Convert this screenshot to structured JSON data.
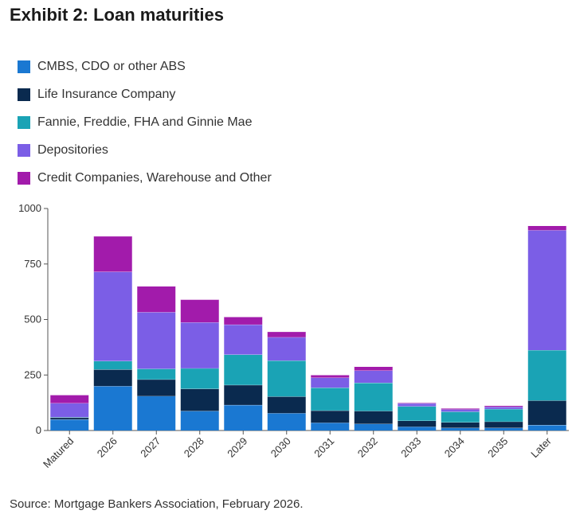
{
  "title": "Exhibit 2: Loan maturities",
  "source": "Source: Mortgage Bankers Association, February 2026.",
  "chart_data": {
    "type": "bar",
    "stacked": true,
    "categories": [
      "Matured",
      "2026",
      "2027",
      "2028",
      "2029",
      "2030",
      "2031",
      "2032",
      "2033",
      "2034",
      "2035",
      "Later"
    ],
    "ylim": [
      0,
      1000
    ],
    "yticks": [
      "0",
      "250",
      "500",
      "750",
      "1000"
    ],
    "ytick_values": [
      0,
      250,
      500,
      750,
      1000
    ],
    "legend_position": "top-left",
    "grid": false,
    "series": [
      {
        "name": "CMBS, CDO or other ABS",
        "color": "#1a78d2",
        "values": [
          50,
          200,
          155,
          88,
          115,
          78,
          35,
          30,
          17,
          12,
          12,
          25
        ]
      },
      {
        "name": "Life Insurance Company",
        "color": "#0a2a4f",
        "values": [
          8,
          75,
          75,
          100,
          90,
          75,
          55,
          58,
          27,
          25,
          28,
          110
        ]
      },
      {
        "name": "Fannie, Freddie, FHA and Ginnie Mae",
        "color": "#1aa3b5",
        "values": [
          2,
          38,
          48,
          92,
          137,
          162,
          103,
          127,
          65,
          48,
          57,
          227
        ]
      },
      {
        "name": "Depositories",
        "color": "#7b5ee6",
        "values": [
          63,
          402,
          255,
          207,
          135,
          105,
          45,
          55,
          13,
          10,
          10,
          540
        ]
      },
      {
        "name": "Credit Companies, Warehouse and Other",
        "color": "#a21bab",
        "values": [
          37,
          160,
          117,
          103,
          35,
          25,
          12,
          18,
          3,
          5,
          5,
          20
        ]
      }
    ]
  }
}
